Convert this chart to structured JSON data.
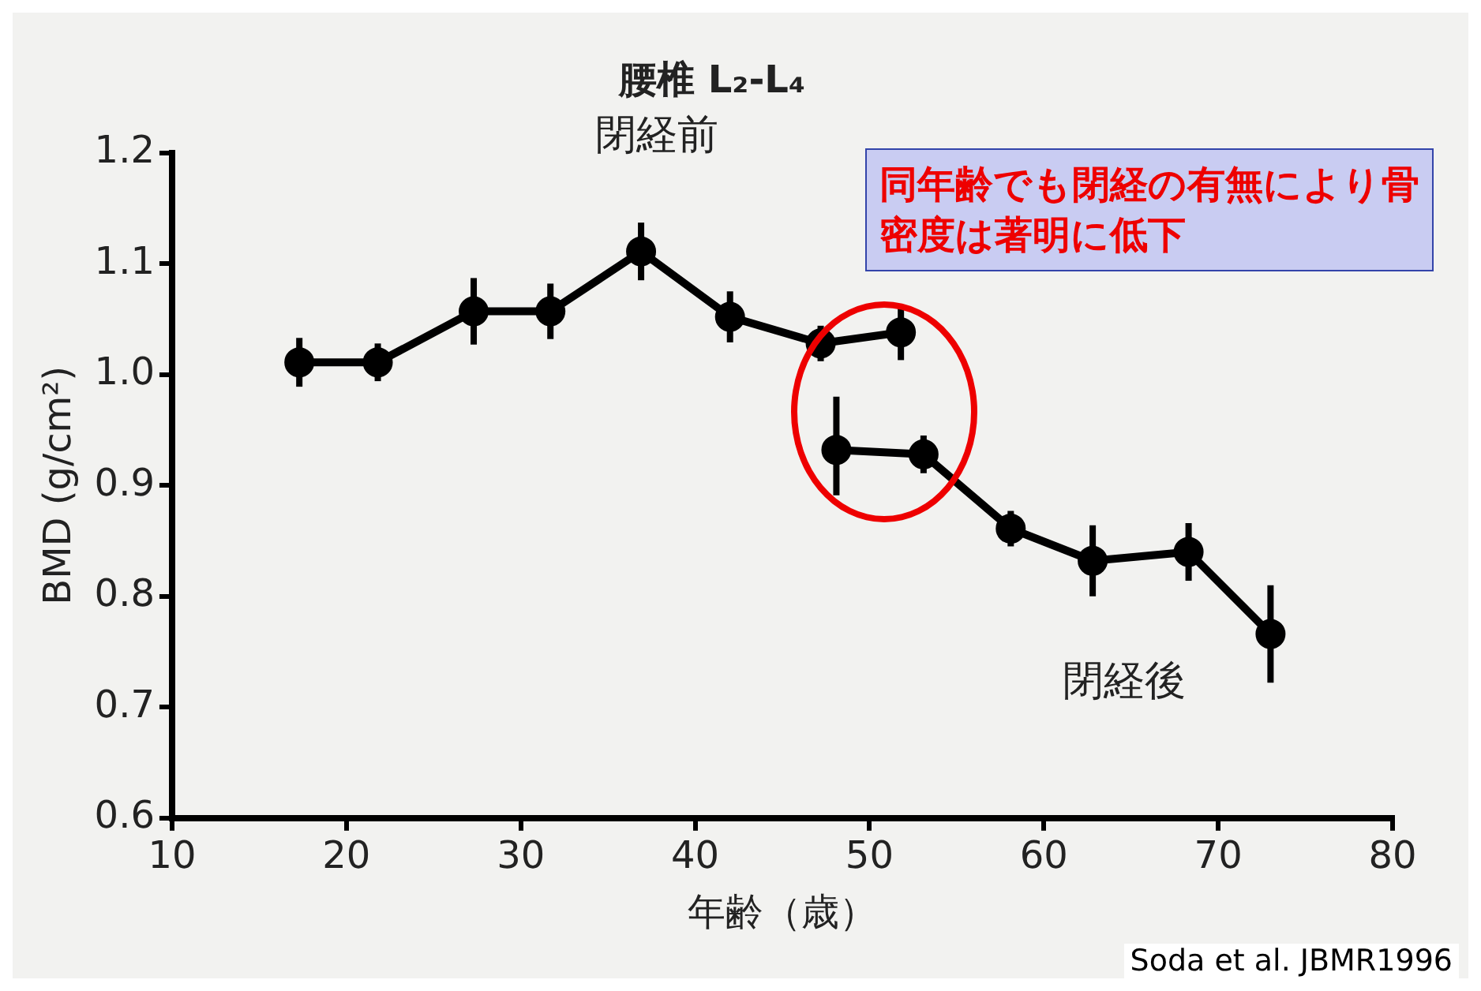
{
  "chart_data": {
    "type": "line",
    "title": "腰椎 L₂-L₄",
    "xlabel": "年齢（歳）",
    "ylabel": "BMD (g/cm²)",
    "xlim": [
      10,
      80
    ],
    "xticks": [
      10,
      20,
      30,
      40,
      50,
      60,
      70,
      80
    ],
    "ylim": [
      0.6,
      1.2
    ],
    "yticks": [
      0.6,
      0.7,
      0.8,
      0.9,
      {
        "value": 1,
        "label": "1.0"
      },
      1.1,
      1.2
    ],
    "grid": false,
    "legend": false,
    "marker": "circle",
    "line_style": "solid",
    "series": [
      {
        "name": "閉経前",
        "color": "#000000",
        "x": [
          17.3,
          21.8,
          27.3,
          31.7,
          36.9,
          42.0,
          47.2,
          51.8
        ],
        "values": [
          1.011,
          1.011,
          1.057,
          1.057,
          1.111,
          1.052,
          1.028,
          1.038
        ],
        "errors": [
          0.022,
          0.017,
          0.03,
          0.025,
          0.026,
          0.023,
          0.016,
          0.025
        ]
      },
      {
        "name": "閉経後",
        "color": "#000000",
        "x": [
          48.1,
          53.1,
          58.1,
          62.8,
          68.3,
          73.0
        ],
        "values": [
          0.932,
          0.928,
          0.861,
          0.832,
          0.84,
          0.766
        ],
        "errors": [
          [
            0.891,
            0.98
          ],
          0.017,
          0.016,
          0.032,
          0.026,
          0.044
        ]
      }
    ],
    "annotations": [
      "同年齢でも閉経の有無により骨密度は著明に低下",
      "Soda et al. JBMR1996"
    ]
  }
}
